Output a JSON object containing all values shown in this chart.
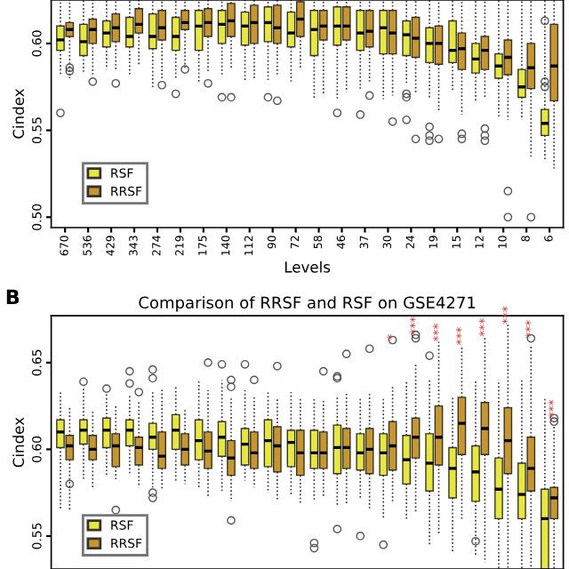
{
  "chart_data": [
    {
      "type": "box",
      "xlabel": "Levels",
      "ylabel": "Cindex",
      "categories": [
        "670",
        "536",
        "429",
        "343",
        "274",
        "219",
        "175",
        "140",
        "112",
        "90",
        "72",
        "58",
        "46",
        "37",
        "30",
        "24",
        "19",
        "15",
        "12",
        "10",
        "8",
        "6"
      ],
      "ylim": [
        0.494,
        0.625
      ],
      "yticks": [
        {
          "value": 0.5,
          "label": "0.50"
        },
        {
          "value": 0.55,
          "label": "0.55"
        },
        {
          "value": 0.6,
          "label": "0.60"
        }
      ],
      "legend": "bottom left",
      "series": [
        {
          "name": "RSF",
          "color": "#e8e83a",
          "boxes": [
            {
              "low": 0.582,
              "q1": 0.596,
              "median": 0.602,
              "q3": 0.61,
              "high": 0.625,
              "outliers": [
                0.56
              ]
            },
            {
              "low": 0.583,
              "q1": 0.593,
              "median": 0.601,
              "q3": 0.611,
              "high": 0.625
            },
            {
              "low": 0.585,
              "q1": 0.598,
              "median": 0.606,
              "q3": 0.613,
              "high": 0.625
            },
            {
              "low": 0.581,
              "q1": 0.598,
              "median": 0.604,
              "q3": 0.615,
              "high": 0.625
            },
            {
              "low": 0.574,
              "q1": 0.597,
              "median": 0.604,
              "q3": 0.617,
              "high": 0.625
            },
            {
              "low": 0.579,
              "q1": 0.596,
              "median": 0.604,
              "q3": 0.615,
              "high": 0.625,
              "outliers": [
                0.571
              ]
            },
            {
              "low": 0.578,
              "q1": 0.596,
              "median": 0.61,
              "q3": 0.619,
              "high": 0.625
            },
            {
              "low": 0.582,
              "q1": 0.6,
              "median": 0.611,
              "q3": 0.619,
              "high": 0.625,
              "outliers": [
                0.569
              ]
            },
            {
              "low": 0.579,
              "q1": 0.599,
              "median": 0.61,
              "q3": 0.618,
              "high": 0.625
            },
            {
              "low": 0.579,
              "q1": 0.601,
              "median": 0.612,
              "q3": 0.621,
              "high": 0.625,
              "outliers": [
                0.569
              ]
            },
            {
              "low": 0.578,
              "q1": 0.598,
              "median": 0.606,
              "q3": 0.618,
              "high": 0.625
            },
            {
              "low": 0.568,
              "q1": 0.593,
              "median": 0.608,
              "q3": 0.619,
              "high": 0.625
            },
            {
              "low": 0.568,
              "q1": 0.599,
              "median": 0.61,
              "q3": 0.621,
              "high": 0.625,
              "outliers": [
                0.56
              ]
            },
            {
              "low": 0.574,
              "q1": 0.596,
              "median": 0.606,
              "q3": 0.619,
              "high": 0.625,
              "outliers": [
                0.559
              ]
            },
            {
              "low": 0.568,
              "q1": 0.594,
              "median": 0.609,
              "q3": 0.619,
              "high": 0.625
            },
            {
              "low": 0.576,
              "q1": 0.593,
              "median": 0.605,
              "q3": 0.613,
              "high": 0.625,
              "outliers": [
                0.571,
                0.569,
                0.556
              ]
            },
            {
              "low": 0.569,
              "q1": 0.589,
              "median": 0.6,
              "q3": 0.609,
              "high": 0.625,
              "outliers": [
                0.552,
                0.547,
                0.544
              ]
            },
            {
              "low": 0.572,
              "q1": 0.589,
              "median": 0.596,
              "q3": 0.613,
              "high": 0.625
            },
            {
              "low": 0.566,
              "q1": 0.583,
              "median": 0.591,
              "q3": 0.6,
              "high": 0.625
            },
            {
              "low": 0.558,
              "q1": 0.58,
              "median": 0.587,
              "q3": 0.594,
              "high": 0.625
            },
            {
              "low": 0.556,
              "q1": 0.569,
              "median": 0.575,
              "q3": 0.585,
              "high": 0.625
            },
            {
              "low": 0.533,
              "q1": 0.547,
              "median": 0.554,
              "q3": 0.562,
              "high": 0.625,
              "outliers": [
                0.578,
                0.575,
                0.613
              ]
            }
          ]
        },
        {
          "name": "RRSF",
          "color": "#c8962a",
          "boxes": [
            {
              "low": 0.58,
              "q1": 0.604,
              "median": 0.608,
              "q3": 0.612,
              "high": 0.625,
              "outliers": [
                0.586,
                0.584
              ]
            },
            {
              "low": 0.581,
              "q1": 0.6,
              "median": 0.608,
              "q3": 0.614,
              "high": 0.625,
              "outliers": [
                0.578
              ]
            },
            {
              "low": 0.585,
              "q1": 0.601,
              "median": 0.609,
              "q3": 0.617,
              "high": 0.625,
              "outliers": [
                0.577
              ]
            },
            {
              "low": 0.588,
              "q1": 0.606,
              "median": 0.611,
              "q3": 0.62,
              "high": 0.625
            },
            {
              "low": 0.58,
              "q1": 0.602,
              "median": 0.609,
              "q3": 0.619,
              "high": 0.625,
              "outliers": [
                0.576
              ]
            },
            {
              "low": 0.586,
              "q1": 0.608,
              "median": 0.612,
              "q3": 0.619,
              "high": 0.625,
              "outliers": [
                0.585
              ]
            },
            {
              "low": 0.584,
              "q1": 0.604,
              "median": 0.612,
              "q3": 0.62,
              "high": 0.625,
              "outliers": [
                0.577
              ]
            },
            {
              "low": 0.586,
              "q1": 0.604,
              "median": 0.613,
              "q3": 0.623,
              "high": 0.625,
              "outliers": [
                0.569
              ]
            },
            {
              "low": 0.58,
              "q1": 0.6,
              "median": 0.612,
              "q3": 0.622,
              "high": 0.625
            },
            {
              "low": 0.582,
              "q1": 0.6,
              "median": 0.609,
              "q3": 0.622,
              "high": 0.625,
              "outliers": [
                0.567
              ]
            },
            {
              "low": 0.585,
              "q1": 0.604,
              "median": 0.614,
              "q3": 0.624,
              "high": 0.625
            },
            {
              "low": 0.571,
              "q1": 0.602,
              "median": 0.61,
              "q3": 0.619,
              "high": 0.625
            },
            {
              "low": 0.572,
              "q1": 0.602,
              "median": 0.61,
              "q3": 0.621,
              "high": 0.625
            },
            {
              "low": 0.578,
              "q1": 0.598,
              "median": 0.607,
              "q3": 0.619,
              "high": 0.625,
              "outliers": [
                0.57
              ]
            },
            {
              "low": 0.57,
              "q1": 0.594,
              "median": 0.606,
              "q3": 0.619,
              "high": 0.625,
              "outliers": [
                0.555
              ]
            },
            {
              "low": 0.571,
              "q1": 0.592,
              "median": 0.603,
              "q3": 0.615,
              "high": 0.625,
              "outliers": [
                0.545
              ]
            },
            {
              "low": 0.561,
              "q1": 0.588,
              "median": 0.6,
              "q3": 0.61,
              "high": 0.625,
              "outliers": [
                0.545
              ]
            },
            {
              "low": 0.559,
              "q1": 0.585,
              "median": 0.597,
              "q3": 0.606,
              "high": 0.625,
              "outliers": [
                0.548,
                0.545
              ]
            },
            {
              "low": 0.568,
              "q1": 0.585,
              "median": 0.596,
              "q3": 0.604,
              "high": 0.625,
              "outliers": [
                0.551,
                0.547,
                0.544
              ]
            },
            {
              "low": 0.556,
              "q1": 0.582,
              "median": 0.592,
              "q3": 0.602,
              "high": 0.625,
              "outliers": [
                0.515,
                0.5
              ]
            },
            {
              "low": 0.534,
              "q1": 0.574,
              "median": 0.586,
              "q3": 0.6,
              "high": 0.625,
              "outliers": [
                0.5
              ]
            },
            {
              "low": 0.528,
              "q1": 0.567,
              "median": 0.587,
              "q3": 0.611,
              "high": 0.625
            }
          ]
        }
      ]
    },
    {
      "type": "box",
      "title": "Comparison of RRSF and RSF on GSE4271",
      "ylabel": "Cindex",
      "annotations": [
        "B"
      ],
      "categories": [
        null,
        null,
        null,
        null,
        null,
        null,
        null,
        null,
        null,
        null,
        null,
        null,
        null,
        null,
        null,
        null,
        null,
        null,
        null,
        null,
        null,
        null
      ],
      "ylim": [
        0.531,
        0.677
      ],
      "yticks": [
        {
          "value": 0.55,
          "label": "0.55"
        },
        {
          "value": 0.6,
          "label": "0.60"
        },
        {
          "value": 0.65,
          "label": "0.65"
        }
      ],
      "tick_labels": "y",
      "legend": "bottom left",
      "series": [
        {
          "name": "RSF",
          "color": "#e8e83a",
          "boxes": [
            {
              "low": 0.566,
              "q1": 0.601,
              "median": 0.61,
              "q3": 0.617,
              "high": 0.633
            },
            {
              "low": 0.583,
              "q1": 0.603,
              "median": 0.611,
              "q3": 0.617,
              "high": 0.635,
              "outliers": [
                0.639
              ]
            },
            {
              "low": 0.585,
              "q1": 0.601,
              "median": 0.611,
              "q3": 0.618,
              "high": 0.633,
              "outliers": [
                0.635
              ]
            },
            {
              "low": 0.585,
              "q1": 0.602,
              "median": 0.611,
              "q3": 0.617,
              "high": 0.632,
              "outliers": [
                0.645,
                0.638
              ]
            },
            {
              "low": 0.578,
              "q1": 0.6,
              "median": 0.607,
              "q3": 0.615,
              "high": 0.634,
              "outliers": [
                0.646,
                0.641,
                0.575,
                0.572
              ]
            },
            {
              "low": 0.582,
              "q1": 0.6,
              "median": 0.611,
              "q3": 0.62,
              "high": 0.637
            },
            {
              "low": 0.577,
              "q1": 0.594,
              "median": 0.605,
              "q3": 0.617,
              "high": 0.64
            },
            {
              "low": 0.575,
              "q1": 0.596,
              "median": 0.607,
              "q3": 0.616,
              "high": 0.64,
              "outliers": [
                0.649
              ]
            },
            {
              "low": 0.582,
              "q1": 0.591,
              "median": 0.603,
              "q3": 0.612,
              "high": 0.634,
              "outliers": [
                0.649
              ]
            },
            {
              "low": 0.575,
              "q1": 0.59,
              "median": 0.605,
              "q3": 0.617,
              "high": 0.633
            },
            {
              "low": 0.574,
              "q1": 0.59,
              "median": 0.604,
              "q3": 0.611,
              "high": 0.633
            },
            {
              "low": 0.57,
              "q1": 0.589,
              "median": 0.598,
              "q3": 0.611,
              "high": 0.63,
              "outliers": [
                0.546,
                0.543
              ]
            },
            {
              "low": 0.568,
              "q1": 0.586,
              "median": 0.601,
              "q3": 0.614,
              "high": 0.63,
              "outliers": [
                0.554,
                0.642,
                0.641
              ]
            },
            {
              "low": 0.572,
              "q1": 0.588,
              "median": 0.598,
              "q3": 0.609,
              "high": 0.63,
              "outliers": [
                0.55
              ]
            },
            {
              "low": 0.56,
              "q1": 0.585,
              "median": 0.598,
              "q3": 0.609,
              "high": 0.63,
              "outliers": [
                0.545
              ]
            },
            {
              "low": 0.56,
              "q1": 0.58,
              "median": 0.594,
              "q3": 0.608,
              "high": 0.64
            },
            {
              "low": 0.545,
              "q1": 0.576,
              "median": 0.592,
              "q3": 0.609,
              "high": 0.64,
              "outliers": [
                0.654
              ]
            },
            {
              "low": 0.54,
              "q1": 0.572,
              "median": 0.589,
              "q3": 0.601,
              "high": 0.63
            },
            {
              "low": 0.539,
              "q1": 0.57,
              "median": 0.587,
              "q3": 0.602,
              "high": 0.64,
              "outliers": [
                0.547
              ]
            },
            {
              "low": 0.531,
              "q1": 0.56,
              "median": 0.577,
              "q3": 0.595,
              "high": 0.64
            },
            {
              "low": 0.531,
              "q1": 0.56,
              "median": 0.574,
              "q3": 0.592,
              "high": 0.64
            },
            {
              "low": 0.531,
              "q1": 0.531,
              "median": 0.56,
              "q3": 0.577,
              "high": 0.629
            }
          ]
        },
        {
          "name": "RRSF",
          "color": "#c8962a",
          "value_labels": [
            null,
            null,
            null,
            null,
            null,
            null,
            null,
            null,
            null,
            null,
            null,
            null,
            null,
            null,
            "*",
            "***",
            "***",
            "***",
            "***",
            "***",
            "***",
            "***"
          ],
          "boxes": [
            {
              "low": 0.565,
              "q1": 0.594,
              "median": 0.602,
              "q3": 0.608,
              "high": 0.625,
              "outliers": [
                0.58
              ]
            },
            {
              "low": 0.578,
              "q1": 0.594,
              "median": 0.6,
              "q3": 0.608,
              "high": 0.622
            },
            {
              "low": 0.582,
              "q1": 0.59,
              "median": 0.602,
              "q3": 0.609,
              "high": 0.625,
              "outliers": [
                0.565
              ]
            },
            {
              "low": 0.578,
              "q1": 0.591,
              "median": 0.601,
              "q3": 0.607,
              "high": 0.628,
              "outliers": [
                0.633
              ]
            },
            {
              "low": 0.577,
              "q1": 0.589,
              "median": 0.596,
              "q3": 0.61,
              "high": 0.635
            },
            {
              "low": 0.58,
              "q1": 0.591,
              "median": 0.6,
              "q3": 0.609,
              "high": 0.623
            },
            {
              "low": 0.573,
              "q1": 0.589,
              "median": 0.599,
              "q3": 0.61,
              "high": 0.634,
              "outliers": [
                0.65
              ]
            },
            {
              "low": 0.57,
              "q1": 0.585,
              "median": 0.595,
              "q3": 0.605,
              "high": 0.63,
              "outliers": [
                0.559,
                0.64,
                0.636
              ]
            },
            {
              "low": 0.578,
              "q1": 0.589,
              "median": 0.598,
              "q3": 0.61,
              "high": 0.63,
              "outliers": [
                0.64
              ]
            },
            {
              "low": 0.57,
              "q1": 0.587,
              "median": 0.602,
              "q3": 0.613,
              "high": 0.63,
              "outliers": [
                0.648
              ]
            },
            {
              "low": 0.568,
              "q1": 0.585,
              "median": 0.598,
              "q3": 0.611,
              "high": 0.63
            },
            {
              "low": 0.573,
              "q1": 0.589,
              "median": 0.598,
              "q3": 0.61,
              "high": 0.629,
              "outliers": [
                0.645
              ]
            },
            {
              "low": 0.568,
              "q1": 0.589,
              "median": 0.601,
              "q3": 0.612,
              "high": 0.632,
              "outliers": [
                0.655
              ]
            },
            {
              "low": 0.566,
              "q1": 0.586,
              "median": 0.6,
              "q3": 0.612,
              "high": 0.632,
              "outliers": [
                0.658
              ]
            },
            {
              "low": 0.57,
              "q1": 0.588,
              "median": 0.602,
              "q3": 0.616,
              "high": 0.636,
              "outliers": [
                0.663
              ]
            },
            {
              "low": 0.563,
              "q1": 0.595,
              "median": 0.607,
              "q3": 0.618,
              "high": 0.65,
              "outliers": [
                0.666,
                0.664
              ]
            },
            {
              "low": 0.551,
              "q1": 0.591,
              "median": 0.607,
              "q3": 0.625,
              "high": 0.662
            },
            {
              "low": 0.56,
              "q1": 0.597,
              "median": 0.615,
              "q3": 0.63,
              "high": 0.66
            },
            {
              "low": 0.535,
              "q1": 0.597,
              "median": 0.612,
              "q3": 0.627,
              "high": 0.665
            },
            {
              "low": 0.531,
              "q1": 0.586,
              "median": 0.605,
              "q3": 0.624,
              "high": 0.672
            },
            {
              "low": 0.531,
              "q1": 0.576,
              "median": 0.589,
              "q3": 0.607,
              "high": 0.66,
              "outliers": [
                0.664
              ]
            },
            {
              "low": 0.531,
              "q1": 0.56,
              "median": 0.572,
              "q3": 0.578,
              "high": 0.614,
              "outliers": [
                0.616,
                0.618
              ]
            }
          ]
        }
      ]
    }
  ]
}
